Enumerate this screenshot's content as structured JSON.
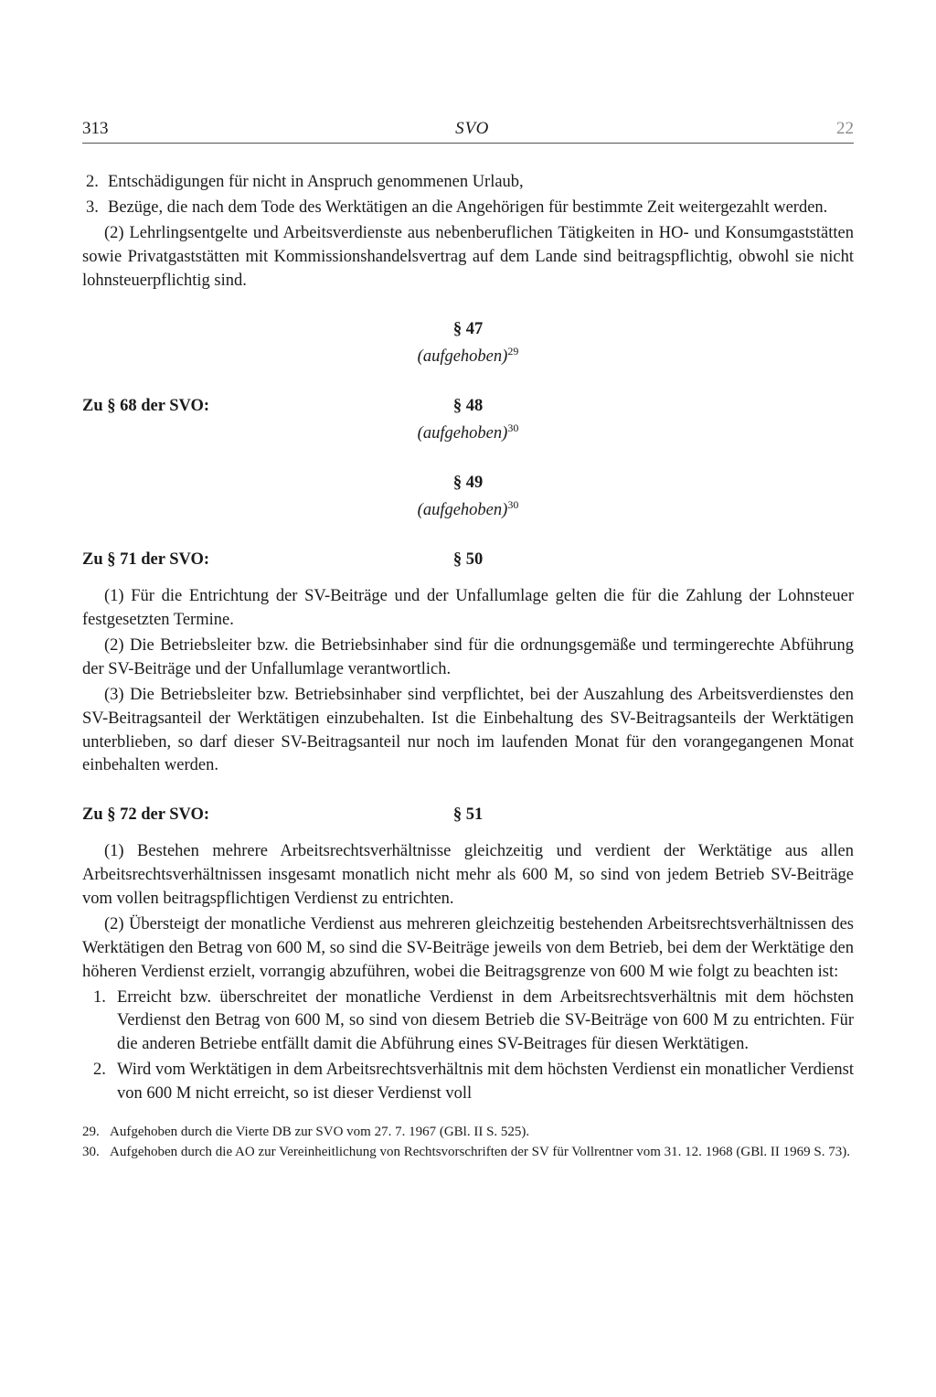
{
  "header": {
    "page_left": "313",
    "title": "SVO",
    "page_right": "22"
  },
  "top_enum": [
    {
      "num": "2.",
      "text": "Entschädigungen für nicht in Anspruch genommenen Urlaub,"
    },
    {
      "num": "3.",
      "text": "Bezüge, die nach dem Tode des Werktätigen an die Angehörigen für bestimmte Zeit weitergezahlt werden."
    }
  ],
  "top_para": "(2) Lehrlingsentgelte und Arbeitsverdienste aus nebenberuflichen Tätigkeiten in HO- und Konsumgaststätten sowie Privatgaststätten mit Kommissionshandelsvertrag auf dem Lande sind beitragspflichtig, obwohl sie nicht lohnsteuerpflichtig sind.",
  "s47": {
    "title": "§ 47",
    "status": "(aufgehoben)",
    "fn": "29"
  },
  "ref68": {
    "label": "Zu § 68 der SVO:",
    "title": "§ 48",
    "status": "(aufgehoben)",
    "fn": "30"
  },
  "s49": {
    "title": "§ 49",
    "status": "(aufgehoben)",
    "fn": "30"
  },
  "ref71": {
    "label": "Zu § 71 der SVO:",
    "title": "§ 50"
  },
  "s50_paras": [
    "(1) Für die Entrichtung der SV-Beiträge und der Unfallumlage gelten die für die Zahlung der Lohnsteuer festgesetzten Termine.",
    "(2) Die Betriebsleiter bzw. die Betriebsinhaber sind für die ordnungsgemäße und termingerechte Abführung der SV-Beiträge und der Unfallumlage verantwortlich.",
    "(3) Die Betriebsleiter bzw. Betriebsinhaber sind verpflichtet, bei der Auszahlung des Arbeitsverdienstes den SV-Beitragsanteil der Werktätigen einzubehalten. Ist die Einbehaltung des SV-Beitragsanteils der Werktätigen unterblieben, so darf dieser SV-Beitragsanteil nur noch im laufenden Monat für den vorangegangenen Monat einbehalten werden."
  ],
  "ref72": {
    "label": "Zu § 72 der SVO:",
    "title": "§ 51"
  },
  "s51_paras": [
    "(1) Bestehen mehrere Arbeitsrechtsverhältnisse gleichzeitig und verdient der Werktätige aus allen Arbeitsrechtsverhältnissen insgesamt monatlich nicht mehr als 600 M, so sind von jedem Betrieb SV-Beiträge vom vollen beitragspflichtigen Verdienst zu entrichten.",
    "(2) Übersteigt der monatliche Verdienst aus mehreren gleichzeitig bestehenden Arbeitsrechtsverhältnissen des Werktätigen den Betrag von 600 M, so sind die SV-Beiträge jeweils von dem Betrieb, bei dem der Werktätige den höheren Verdienst erzielt, vorrangig abzuführen, wobei die Beitragsgrenze von 600 M wie folgt zu beachten ist:"
  ],
  "s51_list": [
    {
      "num": "1.",
      "text": "Erreicht bzw. überschreitet der monatliche Verdienst in dem Arbeitsrechtsverhältnis mit dem höchsten Verdienst den Betrag von 600 M, so sind von diesem Betrieb die SV-Beiträge von 600 M zu entrichten. Für die anderen Betriebe entfällt damit die Abführung eines SV-Beitrages für diesen Werktätigen."
    },
    {
      "num": "2.",
      "text": "Wird vom Werktätigen in dem Arbeitsrechtsverhältnis mit dem höchsten Verdienst ein monatlicher Verdienst von 600 M nicht erreicht, so ist dieser Verdienst voll"
    }
  ],
  "footnotes": [
    {
      "num": "29.",
      "text": "Aufgehoben durch die Vierte DB zur SVO vom 27. 7. 1967 (GBl. II S. 525)."
    },
    {
      "num": "30.",
      "text": "Aufgehoben durch die AO zur Vereinheitlichung von Rechtsvorschriften der SV für Vollrentner vom 31. 12. 1968 (GBl. II 1969 S. 73)."
    }
  ]
}
